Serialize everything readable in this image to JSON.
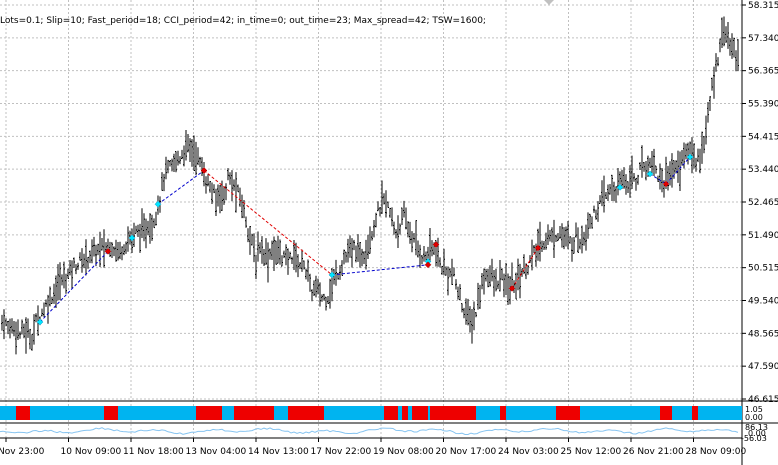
{
  "params_text": "Lots=0.1; Slip=10; Fast_period=18; CCI_period=42; in_time=0; out_time=23; Max_spread=42; TSW=1600;",
  "colors": {
    "background": "#ffffff",
    "grid": "#c0c0c0",
    "bars": "#000000",
    "buy_marker": "#00e5ff",
    "sell_marker": "#e00000",
    "buy_line": "#0000cc",
    "sell_line": "#e00000",
    "state_blue": "#00b4f0",
    "state_red": "#ee0000",
    "osc_line": "#87c4f0"
  },
  "icons": {
    "scroll_marker": "triangle-down-icon"
  },
  "chart_data": {
    "type": "ohlc",
    "y_ticks": [
      "58.315",
      "57.340",
      "56.365",
      "55.390",
      "54.415",
      "53.440",
      "52.465",
      "51.490",
      "50.515",
      "49.540",
      "48.565",
      "47.590",
      "46.615"
    ],
    "ylim": [
      46.615,
      58.315
    ],
    "x_ticks": [
      "Nov 23:00",
      "10 Nov 09:00",
      "11 Nov 18:00",
      "13 Nov 04:00",
      "14 Nov 13:00",
      "17 Nov 22:00",
      "19 Nov 08:00",
      "20 Nov 17:00",
      "24 Nov 03:00",
      "25 Nov 12:00",
      "26 Nov 21:00",
      "28 Nov 09:00"
    ],
    "price_path": [
      [
        0,
        48.85
      ],
      [
        4,
        48.95
      ],
      [
        8,
        48.7
      ],
      [
        12,
        48.8
      ],
      [
        16,
        48.7
      ],
      [
        20,
        48.55
      ],
      [
        24,
        48.65
      ],
      [
        28,
        48.55
      ],
      [
        32,
        48.45
      ],
      [
        36,
        48.9
      ],
      [
        40,
        49.1
      ],
      [
        44,
        49.3
      ],
      [
        48,
        49.5
      ],
      [
        52,
        49.7
      ],
      [
        56,
        49.9
      ],
      [
        60,
        50.1
      ],
      [
        64,
        50.2
      ],
      [
        68,
        50.3
      ],
      [
        72,
        50.5
      ],
      [
        76,
        50.6
      ],
      [
        80,
        50.7
      ],
      [
        84,
        50.75
      ],
      [
        88,
        50.85
      ],
      [
        92,
        50.95
      ],
      [
        96,
        51.0
      ],
      [
        100,
        51.05
      ],
      [
        104,
        51.1
      ],
      [
        108,
        51.15
      ],
      [
        112,
        51.2
      ],
      [
        116,
        51.05
      ],
      [
        120,
        51.0
      ],
      [
        124,
        51.2
      ],
      [
        128,
        51.35
      ],
      [
        132,
        51.4
      ],
      [
        136,
        51.55
      ],
      [
        140,
        51.6
      ],
      [
        144,
        51.5
      ],
      [
        148,
        51.8
      ],
      [
        152,
        51.75
      ],
      [
        156,
        52.2
      ],
      [
        160,
        52.6
      ],
      [
        164,
        53.2
      ],
      [
        168,
        53.4
      ],
      [
        172,
        53.5
      ],
      [
        176,
        53.7
      ],
      [
        180,
        53.8
      ],
      [
        184,
        54.0
      ],
      [
        188,
        54.1
      ],
      [
        192,
        54.0
      ],
      [
        196,
        53.9
      ],
      [
        200,
        53.6
      ],
      [
        204,
        53.3
      ],
      [
        208,
        53.0
      ],
      [
        212,
        52.8
      ],
      [
        216,
        52.5
      ],
      [
        220,
        52.8
      ],
      [
        224,
        52.6
      ],
      [
        228,
        53.2
      ],
      [
        232,
        53.0
      ],
      [
        236,
        52.8
      ],
      [
        240,
        52.6
      ],
      [
        244,
        52.2
      ],
      [
        248,
        51.7
      ],
      [
        252,
        51.2
      ],
      [
        256,
        50.7
      ],
      [
        260,
        51.2
      ],
      [
        264,
        51.0
      ],
      [
        268,
        50.8
      ],
      [
        272,
        51.1
      ],
      [
        276,
        50.9
      ],
      [
        280,
        51.0
      ],
      [
        284,
        50.8
      ],
      [
        288,
        50.7
      ],
      [
        292,
        50.9
      ],
      [
        296,
        50.8
      ],
      [
        300,
        50.6
      ],
      [
        304,
        50.7
      ],
      [
        308,
        50.2
      ],
      [
        312,
        49.8
      ],
      [
        316,
        49.9
      ],
      [
        320,
        49.7
      ],
      [
        324,
        49.6
      ],
      [
        328,
        49.7
      ],
      [
        332,
        50.0
      ],
      [
        336,
        50.3
      ],
      [
        340,
        50.5
      ],
      [
        344,
        50.8
      ],
      [
        348,
        50.9
      ],
      [
        352,
        51.0
      ],
      [
        356,
        51.1
      ],
      [
        360,
        50.8
      ],
      [
        364,
        51.0
      ],
      [
        368,
        51.3
      ],
      [
        372,
        51.6
      ],
      [
        376,
        52.0
      ],
      [
        380,
        52.3
      ],
      [
        384,
        52.5
      ],
      [
        388,
        52.3
      ],
      [
        392,
        51.9
      ],
      [
        396,
        51.6
      ],
      [
        400,
        51.8
      ],
      [
        404,
        52.0
      ],
      [
        408,
        51.7
      ],
      [
        412,
        51.4
      ],
      [
        416,
        51.2
      ],
      [
        420,
        51.0
      ],
      [
        424,
        50.8
      ],
      [
        428,
        51.0
      ],
      [
        432,
        51.1
      ],
      [
        436,
        51.0
      ],
      [
        440,
        50.6
      ],
      [
        444,
        50.5
      ],
      [
        448,
        50.3
      ],
      [
        452,
        50.4
      ],
      [
        456,
        50.0
      ],
      [
        460,
        49.6
      ],
      [
        464,
        49.3
      ],
      [
        468,
        49.0
      ],
      [
        472,
        48.9
      ],
      [
        476,
        49.2
      ],
      [
        480,
        49.8
      ],
      [
        484,
        50.2
      ],
      [
        488,
        50.4
      ],
      [
        492,
        50.2
      ],
      [
        496,
        50.0
      ],
      [
        500,
        50.2
      ],
      [
        504,
        50.1
      ],
      [
        508,
        49.9
      ],
      [
        512,
        50.0
      ],
      [
        516,
        50.1
      ],
      [
        520,
        50.3
      ],
      [
        524,
        50.5
      ],
      [
        528,
        50.6
      ],
      [
        532,
        50.8
      ],
      [
        536,
        51.0
      ],
      [
        540,
        51.2
      ],
      [
        544,
        51.3
      ],
      [
        548,
        51.45
      ],
      [
        552,
        51.4
      ],
      [
        556,
        51.5
      ],
      [
        560,
        51.6
      ],
      [
        564,
        51.4
      ],
      [
        568,
        51.3
      ],
      [
        572,
        51.2
      ],
      [
        576,
        51.5
      ],
      [
        580,
        51.3
      ],
      [
        584,
        51.5
      ],
      [
        588,
        51.8
      ],
      [
        592,
        52.0
      ],
      [
        596,
        52.2
      ],
      [
        600,
        52.4
      ],
      [
        604,
        52.6
      ],
      [
        608,
        52.7
      ],
      [
        612,
        52.9
      ],
      [
        616,
        52.8
      ],
      [
        620,
        53.0
      ],
      [
        624,
        53.2
      ],
      [
        628,
        53.0
      ],
      [
        632,
        53.3
      ],
      [
        636,
        53.1
      ],
      [
        640,
        53.4
      ],
      [
        644,
        53.6
      ],
      [
        648,
        53.5
      ],
      [
        652,
        53.8
      ],
      [
        656,
        53.4
      ],
      [
        660,
        53.2
      ],
      [
        664,
        53.0
      ],
      [
        668,
        53.3
      ],
      [
        672,
        53.5
      ],
      [
        676,
        53.4
      ],
      [
        680,
        53.6
      ],
      [
        684,
        53.8
      ],
      [
        688,
        54.0
      ],
      [
        692,
        53.9
      ],
      [
        696,
        53.7
      ],
      [
        700,
        53.9
      ],
      [
        704,
        54.2
      ],
      [
        708,
        55.0
      ],
      [
        712,
        55.8
      ],
      [
        716,
        56.5
      ],
      [
        720,
        57.2
      ],
      [
        724,
        57.7
      ],
      [
        728,
        57.3
      ],
      [
        732,
        57.0
      ],
      [
        736,
        56.8
      ],
      [
        740,
        57.1
      ]
    ],
    "buy_markers": [
      [
        40,
        48.9
      ],
      [
        132,
        51.4
      ],
      [
        158,
        52.4
      ],
      [
        332,
        50.3
      ],
      [
        428,
        50.7
      ],
      [
        620,
        52.9
      ],
      [
        650,
        53.3
      ],
      [
        690,
        53.8
      ]
    ],
    "sell_markers": [
      [
        108,
        51.0
      ],
      [
        204,
        53.4
      ],
      [
        428,
        50.6
      ],
      [
        436,
        51.2
      ],
      [
        512,
        49.9
      ],
      [
        538,
        51.1
      ],
      [
        666,
        53.0
      ]
    ],
    "trade_lines": [
      {
        "kind": "buy",
        "from": [
          40,
          48.9
        ],
        "to": [
          108,
          51.0
        ]
      },
      {
        "kind": "buy",
        "from": [
          158,
          52.4
        ],
        "to": [
          204,
          53.4
        ]
      },
      {
        "kind": "sell",
        "from": [
          204,
          53.4
        ],
        "to": [
          332,
          50.3
        ]
      },
      {
        "kind": "buy",
        "from": [
          332,
          50.3
        ],
        "to": [
          428,
          50.6
        ]
      },
      {
        "kind": "sell",
        "from": [
          512,
          49.9
        ],
        "to": [
          538,
          51.1
        ]
      },
      {
        "kind": "buy",
        "from": [
          650,
          53.3
        ],
        "to": [
          666,
          53.0
        ]
      },
      {
        "kind": "buy",
        "from": [
          666,
          53.0
        ],
        "to": [
          690,
          53.8
        ]
      }
    ],
    "state_blocks": [
      {
        "from": 0,
        "to": 16,
        "state": "blue"
      },
      {
        "from": 16,
        "to": 30,
        "state": "red"
      },
      {
        "from": 30,
        "to": 104,
        "state": "blue"
      },
      {
        "from": 104,
        "to": 118,
        "state": "red"
      },
      {
        "from": 118,
        "to": 196,
        "state": "blue"
      },
      {
        "from": 196,
        "to": 222,
        "state": "red"
      },
      {
        "from": 222,
        "to": 234,
        "state": "blue"
      },
      {
        "from": 234,
        "to": 274,
        "state": "red"
      },
      {
        "from": 274,
        "to": 288,
        "state": "blue"
      },
      {
        "from": 288,
        "to": 324,
        "state": "red"
      },
      {
        "from": 324,
        "to": 384,
        "state": "blue"
      },
      {
        "from": 384,
        "to": 398,
        "state": "red"
      },
      {
        "from": 398,
        "to": 402,
        "state": "blue"
      },
      {
        "from": 402,
        "to": 408,
        "state": "red"
      },
      {
        "from": 408,
        "to": 412,
        "state": "blue"
      },
      {
        "from": 412,
        "to": 428,
        "state": "red"
      },
      {
        "from": 428,
        "to": 430,
        "state": "blue"
      },
      {
        "from": 430,
        "to": 476,
        "state": "red"
      },
      {
        "from": 476,
        "to": 500,
        "state": "blue"
      },
      {
        "from": 500,
        "to": 506,
        "state": "red"
      },
      {
        "from": 506,
        "to": 556,
        "state": "blue"
      },
      {
        "from": 556,
        "to": 580,
        "state": "red"
      },
      {
        "from": 580,
        "to": 660,
        "state": "blue"
      },
      {
        "from": 660,
        "to": 672,
        "state": "red"
      },
      {
        "from": 672,
        "to": 692,
        "state": "blue"
      },
      {
        "from": 692,
        "to": 698,
        "state": "red"
      },
      {
        "from": 698,
        "to": 742,
        "state": "blue"
      }
    ],
    "state_axis_labels": [
      "1.05",
      "0.00"
    ],
    "osc_axis_labels": [
      "86.13",
      "0.00",
      "-56.03"
    ]
  }
}
